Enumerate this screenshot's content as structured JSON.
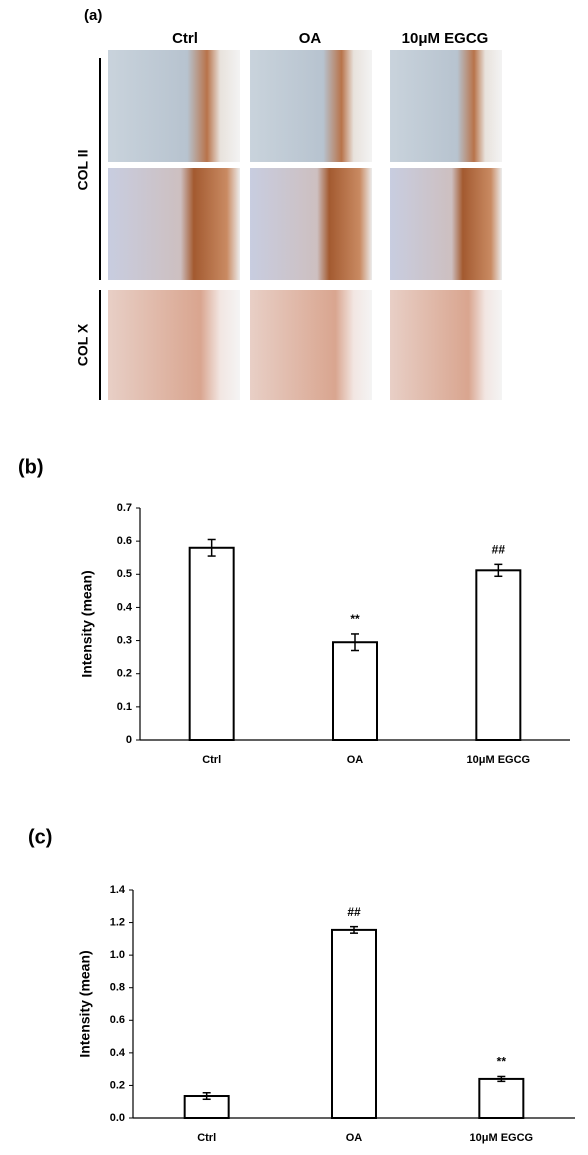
{
  "figure": {
    "panel_label": "(a)",
    "columns": [
      "Ctrl",
      "OA",
      "10μM EGCG"
    ],
    "rows": [
      "COL II",
      "COL X"
    ]
  },
  "chart_data": [
    {
      "type": "bar",
      "panel_label": "(b)",
      "y_label": "Intensity (mean)",
      "categories": [
        "Ctrl",
        "OA",
        "10μM EGCG"
      ],
      "values": [
        0.58,
        0.295,
        0.512
      ],
      "errors": [
        0.025,
        0.025,
        0.018
      ],
      "value_annotations": [
        null,
        "**",
        "##"
      ],
      "color": "#ffffff",
      "ylim": [
        0,
        0.7
      ],
      "yticks": [
        0,
        0.1,
        0.2,
        0.3,
        0.4,
        0.5,
        0.6,
        0.7
      ]
    },
    {
      "type": "bar",
      "panel_label": "(c)",
      "y_label": "Intensity (mean)",
      "categories": [
        "Ctrl",
        "OA",
        "10μM EGCG"
      ],
      "values": [
        0.135,
        1.155,
        0.24
      ],
      "errors": [
        0.02,
        0.02,
        0.015
      ],
      "value_annotations": [
        null,
        "##",
        "**"
      ],
      "color": "#ffffff",
      "ylim": [
        0,
        1.4
      ],
      "yticks": [
        {
          "value": 0,
          "label": "0.0"
        },
        0.2,
        0.4,
        0.6,
        0.8,
        {
          "value": 1,
          "label": "1.0"
        },
        1.2,
        1.4
      ]
    }
  ]
}
